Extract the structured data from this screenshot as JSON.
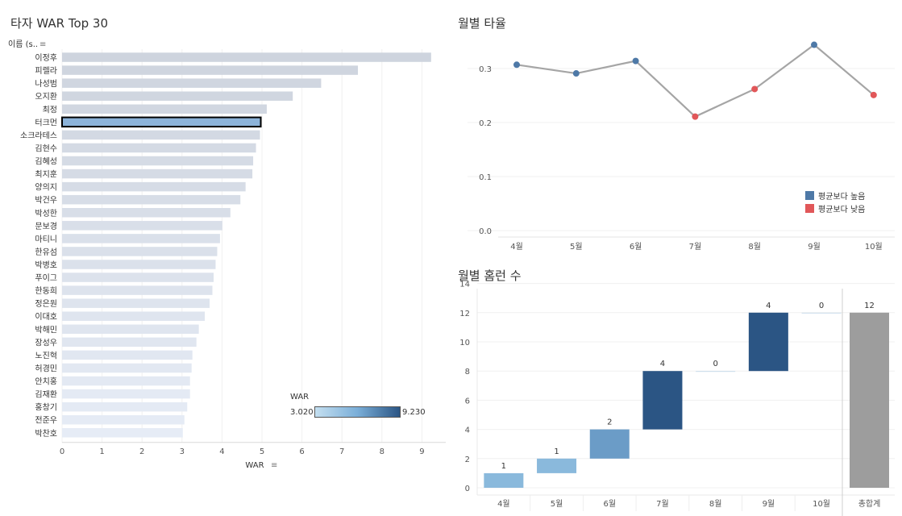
{
  "colors": {
    "above_avg": "#4e79a7",
    "below_avg": "#e15759",
    "line": "#a5a5a5",
    "bar_light": "#dde6ef",
    "bar_selected": "#8cb3d9",
    "grand_total": "#9d9d9d",
    "wf_light": "#8ab9dc",
    "wf_mid": "#6b9cc7",
    "wf_dark": "#2b5584"
  },
  "left_panel": {
    "title": "타자 WAR Top 30",
    "y_header": "이름 (s..",
    "x_label": "WAR",
    "color_legend": {
      "title": "WAR",
      "min": "3.020",
      "max": "9.230"
    }
  },
  "right_top": {
    "title": "월별 타율",
    "legend": [
      {
        "label": "평균보다 높음",
        "color": "#4e79a7"
      },
      {
        "label": "평균보다 낮음",
        "color": "#e15759"
      }
    ]
  },
  "right_bottom": {
    "title": "월별 홈런 수",
    "total_label": "총합계"
  },
  "chart_data": [
    {
      "type": "bar",
      "orientation": "horizontal",
      "title": "타자 WAR Top 30",
      "xlabel": "WAR",
      "ylabel": "이름 (s..",
      "xlim": [
        0,
        9.5
      ],
      "xticks": [
        0,
        1,
        2,
        3,
        4,
        5,
        6,
        7,
        8,
        9
      ],
      "categories": [
        "이정후",
        "피렐라",
        "나성범",
        "오지환",
        "최정",
        "터크먼",
        "소크라테스",
        "김현수",
        "김혜성",
        "최지훈",
        "양의지",
        "박건우",
        "박성한",
        "문보경",
        "마티니",
        "한유섬",
        "박병호",
        "푸이그",
        "한동희",
        "정은원",
        "이대호",
        "박해민",
        "장성우",
        "노진혁",
        "허경민",
        "안치홍",
        "김재환",
        "홍창기",
        "전준우",
        "박찬호"
      ],
      "values": [
        9.23,
        7.4,
        6.48,
        5.77,
        5.12,
        4.97,
        4.95,
        4.85,
        4.78,
        4.76,
        4.59,
        4.46,
        4.21,
        4.01,
        3.95,
        3.88,
        3.84,
        3.79,
        3.76,
        3.69,
        3.57,
        3.42,
        3.36,
        3.26,
        3.24,
        3.2,
        3.2,
        3.13,
        3.06,
        3.02
      ],
      "selected": "터크먼",
      "grid": true
    },
    {
      "type": "line",
      "title": "월별 타율",
      "categories": [
        "4월",
        "5월",
        "6월",
        "7월",
        "8월",
        "9월",
        "10월"
      ],
      "values": [
        0.307,
        0.291,
        0.314,
        0.211,
        0.262,
        0.344,
        0.251
      ],
      "above_average": [
        true,
        true,
        true,
        false,
        false,
        true,
        false
      ],
      "ylim": [
        0,
        0.37
      ],
      "yticks": [
        0.0,
        0.1,
        0.2,
        0.3
      ],
      "legend_position": "right",
      "grid": true
    },
    {
      "type": "bar",
      "subtype": "waterfall",
      "title": "월별 홈런 수",
      "categories": [
        "4월",
        "5월",
        "6월",
        "7월",
        "8월",
        "9월",
        "10월"
      ],
      "values": [
        1,
        1,
        2,
        4,
        0,
        4,
        0
      ],
      "total": {
        "label": "총합계",
        "value": 12
      },
      "ylim": [
        -0.5,
        14.5
      ],
      "yticks": [
        0,
        2,
        4,
        6,
        8,
        10,
        12,
        14
      ],
      "grid": true
    }
  ]
}
